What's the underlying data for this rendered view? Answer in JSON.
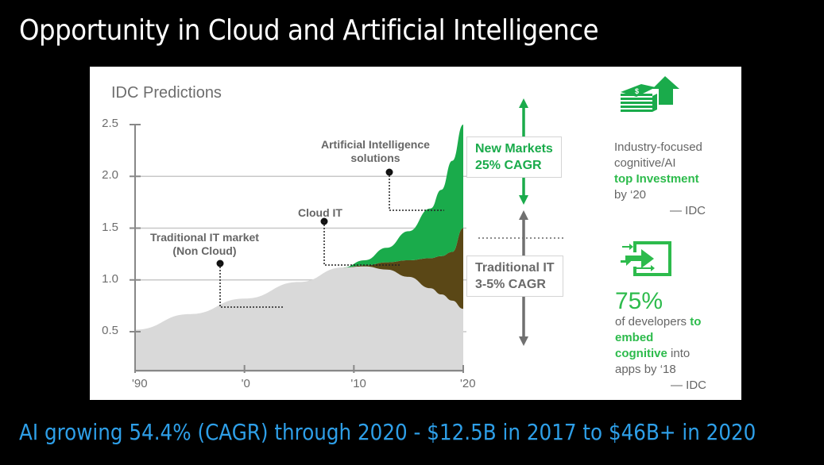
{
  "slide": {
    "title": "Opportunity in Cloud and Artificial Intelligence",
    "footer": "AI growing 54.4% (CAGR) through 2020 -  $12.5B in 2017 to $46B+ in 2020"
  },
  "chart_data": {
    "type": "area",
    "title": "IDC Predictions",
    "xlabel": "",
    "ylabel": "",
    "xlim": [
      1990,
      2020
    ],
    "ylim": [
      0.1,
      2.5
    ],
    "x_ticks": [
      1990,
      2000,
      2010,
      2020
    ],
    "x_tick_labels": [
      "'90",
      "'0",
      "'10",
      "'20"
    ],
    "y_ticks": [
      0.5,
      1.0,
      1.5,
      2.0,
      2.5
    ],
    "y_tick_labels": [
      "0.5",
      "1.0",
      "1.5",
      "2.0",
      "2.5"
    ],
    "grid": "horizontal",
    "stacked": true,
    "x": [
      1990,
      1995,
      2000,
      2005,
      2009,
      2011,
      2013,
      2015,
      2017,
      2018,
      2019,
      2020
    ],
    "series": [
      {
        "name": "Traditional IT market (Non Cloud)",
        "color": "#d9d9d9",
        "values": [
          0.52,
          0.67,
          0.82,
          0.98,
          1.12,
          1.13,
          1.1,
          1.03,
          0.92,
          0.86,
          0.8,
          0.72
        ]
      },
      {
        "name": "Cloud IT",
        "color": "#5a4716",
        "values": [
          0,
          0,
          0,
          0,
          0,
          0.01,
          0.07,
          0.16,
          0.29,
          0.37,
          0.47,
          0.78
        ]
      },
      {
        "name": "Artificial Intelligence solutions",
        "color": "#1aab4b",
        "values": [
          0,
          0,
          0,
          0,
          0,
          0.05,
          0.14,
          0.28,
          0.48,
          0.64,
          0.88,
          1.0
        ]
      }
    ],
    "annotations": [
      {
        "text_lines": [
          "Traditional IT market",
          "(Non Cloud)"
        ],
        "target": "Traditional IT market (Non Cloud)"
      },
      {
        "text_lines": [
          "Cloud IT"
        ],
        "target": "Cloud IT"
      },
      {
        "text_lines": [
          "Artificial Intelligence",
          "solutions"
        ],
        "target": "Artificial Intelligence solutions"
      }
    ],
    "cagr_callouts": [
      {
        "lines": [
          "New Markets",
          "25% CAGR"
        ],
        "color": "#1aab4b"
      },
      {
        "lines": [
          "Traditional IT",
          "3-5% CAGR"
        ],
        "color": "#6a6a6a"
      }
    ]
  },
  "side": {
    "investment": {
      "icon": "money-stack-up-arrow-icon",
      "line1": "Industry-focused",
      "line2": "cognitive/AI",
      "highlight": "top Investment",
      "line4": "by ‘20",
      "source": "— IDC"
    },
    "developers": {
      "icon": "embed-arrows-icon",
      "percent": "75%",
      "text1": "of developers ",
      "highlight1": "to",
      "highlight2": "embed",
      "highlight3": "cognitive",
      "text2": " into",
      "text3": "apps by ‘18",
      "source": "— IDC"
    }
  }
}
